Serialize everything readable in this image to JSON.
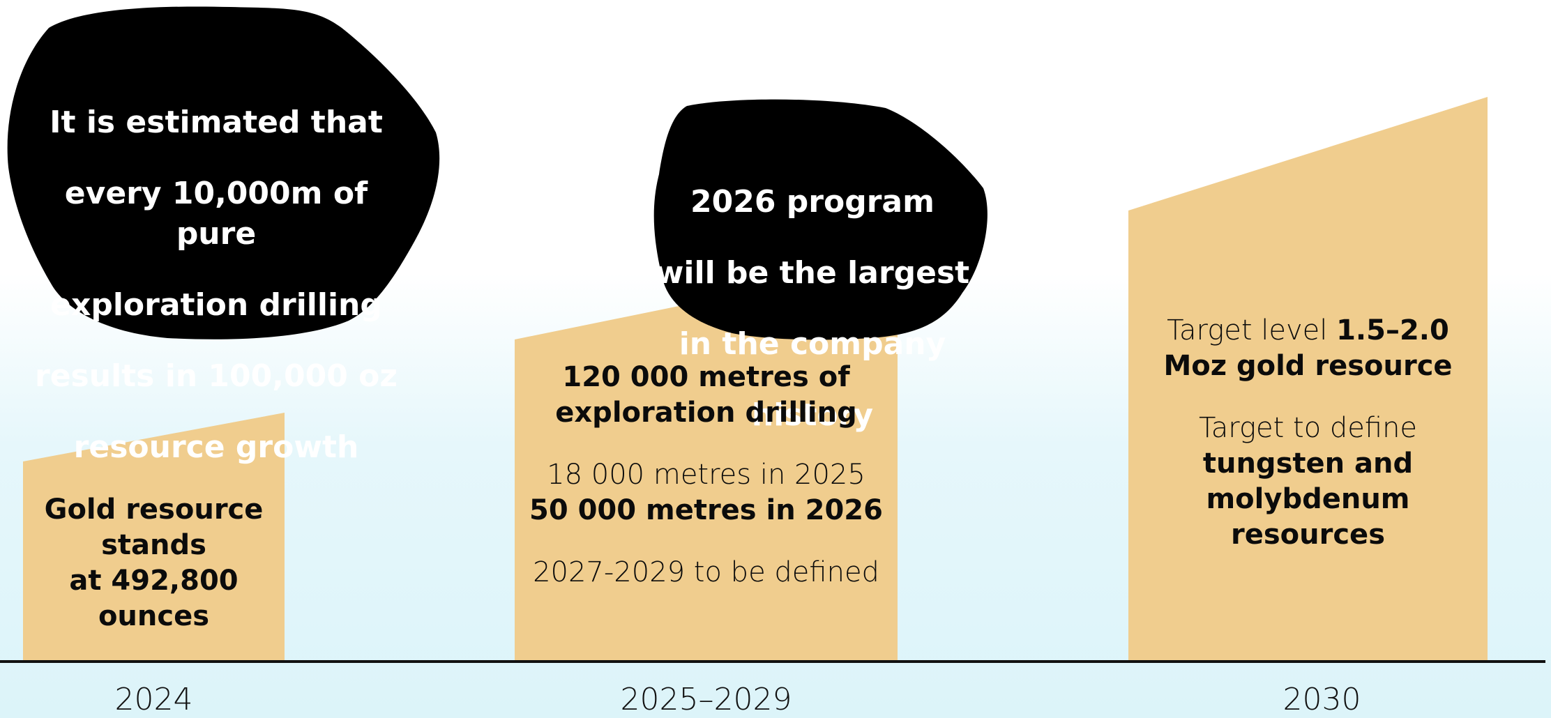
{
  "colors": {
    "bar_fill": "#f0cd8e",
    "bubble_fill": "#000000",
    "axis_line": "#111111",
    "bubble_text": "#ffffff",
    "body_text": "#0b0b0b"
  },
  "bubbles": [
    {
      "lines": [
        "It is estimated that",
        "every 10,000m of pure",
        "exploration drilling",
        "results in 100,000 oz",
        "resource growth"
      ]
    },
    {
      "lines": [
        "2026 program",
        "will be the largest",
        "in the company",
        "history"
      ]
    }
  ],
  "columns": [
    {
      "year": "2024",
      "text_lines": [
        "Gold resource",
        "stands",
        "at 492,800",
        "ounces"
      ]
    },
    {
      "year": "2025–2029",
      "heading_lines": [
        "120 000 metres of",
        "exploration drilling"
      ],
      "detail_light": "18 000 metres in 2025",
      "detail_bold": "50 000 metres in 2026",
      "footnote": "2027-2029 to be defined"
    },
    {
      "year": "2030",
      "target1_light": "Target level ",
      "target1_bold_a": "1.5–2.0",
      "target1_bold_b": "Moz gold resource",
      "target2_light": "Target to define",
      "target2_bold_lines": [
        "tungsten and",
        "molybdenum",
        "resources"
      ]
    }
  ]
}
